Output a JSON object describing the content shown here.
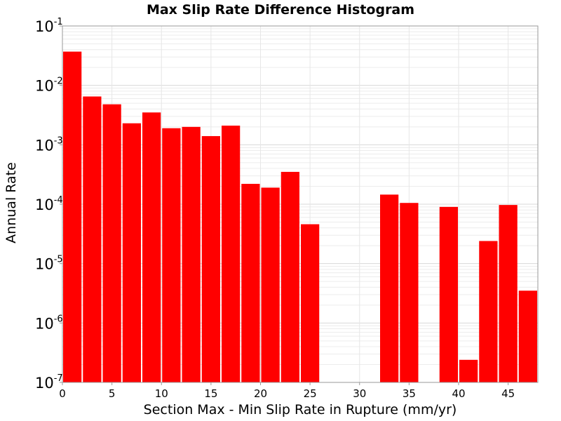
{
  "chart_data": {
    "type": "bar",
    "title": "Max Slip Rate Difference Histogram",
    "xlabel": "Section Max - Min Slip Rate in Rupture (mm/yr)",
    "ylabel": "Annual Rate",
    "y_scale": "log",
    "xlim": [
      0,
      48
    ],
    "ylim": [
      1e-07,
      0.1
    ],
    "bin_width": 2,
    "xticks": [
      "0",
      "5",
      "10",
      "15",
      "20",
      "25",
      "30",
      "35",
      "40",
      "45"
    ],
    "yticks": [
      {
        "base": "10",
        "exp": "-7",
        "value": 1e-07
      },
      {
        "base": "10",
        "exp": "-6",
        "value": 1e-06
      },
      {
        "base": "10",
        "exp": "-5",
        "value": 1e-05
      },
      {
        "base": "10",
        "exp": "-4",
        "value": 0.0001
      },
      {
        "base": "10",
        "exp": "-3",
        "value": 0.001
      },
      {
        "base": "10",
        "exp": "-2",
        "value": 0.01
      },
      {
        "base": "10",
        "exp": "-1",
        "value": 0.1
      }
    ],
    "grid": true,
    "bar_color": "#ff0000",
    "bars": [
      {
        "x0": 0,
        "x1": 2,
        "value": 0.037
      },
      {
        "x0": 2,
        "x1": 4,
        "value": 0.0065
      },
      {
        "x0": 4,
        "x1": 6,
        "value": 0.0048
      },
      {
        "x0": 6,
        "x1": 8,
        "value": 0.0023
      },
      {
        "x0": 8,
        "x1": 10,
        "value": 0.0035
      },
      {
        "x0": 10,
        "x1": 12,
        "value": 0.0019
      },
      {
        "x0": 12,
        "x1": 14,
        "value": 0.002
      },
      {
        "x0": 14,
        "x1": 16,
        "value": 0.0014
      },
      {
        "x0": 16,
        "x1": 18,
        "value": 0.0021
      },
      {
        "x0": 18,
        "x1": 20,
        "value": 0.00022
      },
      {
        "x0": 20,
        "x1": 22,
        "value": 0.00019
      },
      {
        "x0": 22,
        "x1": 24,
        "value": 0.00035
      },
      {
        "x0": 24,
        "x1": 26,
        "value": 4.6e-05
      },
      {
        "x0": 32,
        "x1": 34,
        "value": 0.000145
      },
      {
        "x0": 34,
        "x1": 36,
        "value": 0.000105
      },
      {
        "x0": 38,
        "x1": 40,
        "value": 9e-05
      },
      {
        "x0": 40,
        "x1": 42,
        "value": 2.4e-07
      },
      {
        "x0": 42,
        "x1": 44,
        "value": 2.4e-05
      },
      {
        "x0": 44,
        "x1": 46,
        "value": 9.7e-05
      },
      {
        "x0": 46,
        "x1": 48,
        "value": 3.5e-06
      }
    ]
  }
}
